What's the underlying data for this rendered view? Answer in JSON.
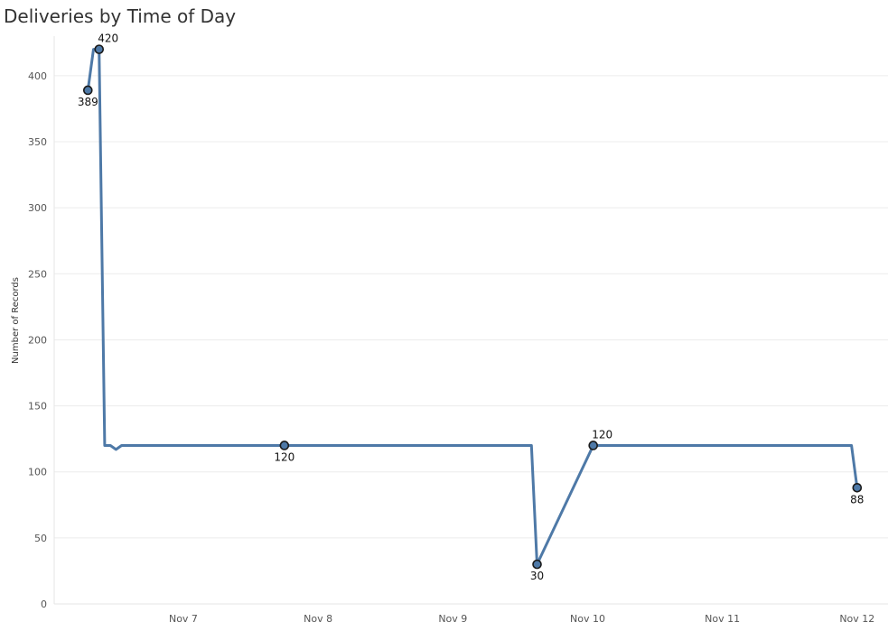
{
  "chart_data": {
    "type": "line",
    "title": "Deliveries by Time of Day",
    "xlabel": "",
    "ylabel": "Number of Records",
    "xlim": [
      "2023-11-06 01:00",
      "2023-11-12 05:30"
    ],
    "ylim": [
      0,
      430
    ],
    "y_ticks": [
      0,
      50,
      100,
      150,
      200,
      250,
      300,
      350,
      400
    ],
    "x_ticks": [
      {
        "x": "2023-11-07 00:00",
        "label": "Nov 7"
      },
      {
        "x": "2023-11-08 00:00",
        "label": "Nov 8"
      },
      {
        "x": "2023-11-09 00:00",
        "label": "Nov 9"
      },
      {
        "x": "2023-11-10 00:00",
        "label": "Nov 10"
      },
      {
        "x": "2023-11-11 00:00",
        "label": "Nov 11"
      },
      {
        "x": "2023-11-12 00:00",
        "label": "Nov 12"
      }
    ],
    "grid": "horizontal",
    "line_color": "#4e79a7",
    "series": [
      {
        "points": [
          {
            "x": "2023-11-06 07:00",
            "y": 389
          },
          {
            "x": "2023-11-06 08:00",
            "y": 420
          },
          {
            "x": "2023-11-06 09:00",
            "y": 420
          },
          {
            "x": "2023-11-06 10:00",
            "y": 120
          },
          {
            "x": "2023-11-06 11:00",
            "y": 120
          },
          {
            "x": "2023-11-06 12:00",
            "y": 117
          },
          {
            "x": "2023-11-06 13:00",
            "y": 120
          },
          {
            "x": "2023-11-07 18:00",
            "y": 120
          },
          {
            "x": "2023-11-09 14:00",
            "y": 120
          },
          {
            "x": "2023-11-09 15:00",
            "y": 30
          },
          {
            "x": "2023-11-10 01:00",
            "y": 120
          },
          {
            "x": "2023-11-11 23:00",
            "y": 120
          },
          {
            "x": "2023-11-12 00:00",
            "y": 88
          }
        ]
      }
    ],
    "markers": [
      {
        "x": "2023-11-06 07:00",
        "y": 389,
        "label": "389",
        "position": "below"
      },
      {
        "x": "2023-11-06 09:00",
        "y": 420,
        "label": "420",
        "position": "above"
      },
      {
        "x": "2023-11-07 18:00",
        "y": 120,
        "label": "120",
        "position": "below"
      },
      {
        "x": "2023-11-09 15:00",
        "y": 30,
        "label": "30",
        "position": "below"
      },
      {
        "x": "2023-11-10 01:00",
        "y": 120,
        "label": "120",
        "position": "above"
      },
      {
        "x": "2023-11-12 00:00",
        "y": 88,
        "label": "88",
        "position": "below"
      }
    ]
  }
}
